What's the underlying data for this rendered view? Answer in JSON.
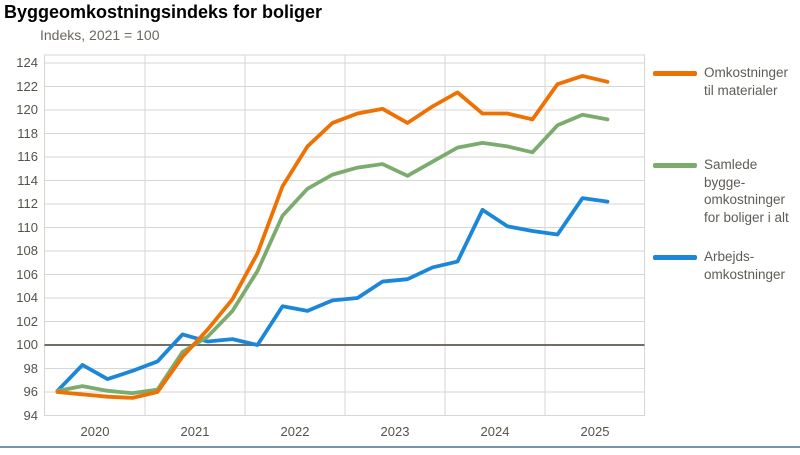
{
  "page": {
    "title": "Byggeomkostningsindeks for boliger",
    "subtitle": "Indeks, 2021 = 100",
    "bottom_border_color": "#7595a9"
  },
  "chart_data": {
    "type": "line",
    "title": "Byggeomkostningsindeks for boliger",
    "subtitle": "Indeks, 2021 = 100",
    "x_unit": "quarter",
    "x": [
      "2020Q1",
      "2020Q2",
      "2020Q3",
      "2020Q4",
      "2021Q1",
      "2021Q2",
      "2021Q3",
      "2021Q4",
      "2022Q1",
      "2022Q2",
      "2022Q3",
      "2022Q4",
      "2023Q1",
      "2023Q2",
      "2023Q3",
      "2023Q4",
      "2024Q1",
      "2024Q2",
      "2024Q3",
      "2024Q4",
      "2025Q1",
      "2025Q2",
      "2025Q3"
    ],
    "x_tick_labels": [
      "2020",
      "2021",
      "2022",
      "2023",
      "2024",
      "2025"
    ],
    "y_ticks": [
      94,
      96,
      98,
      100,
      102,
      104,
      106,
      108,
      110,
      112,
      114,
      116,
      118,
      120,
      122,
      124
    ],
    "ylim": [
      94,
      124
    ],
    "reference_line": {
      "value": 100,
      "color": "#716d66"
    },
    "grid": true,
    "grid_color": "#d8d6d2",
    "legend_position": "right",
    "series": [
      {
        "name": "Omkostninger til materialer",
        "legend_label": "Omkostninger\ntil materialer",
        "color": "#ee7104",
        "values": [
          96.0,
          95.8,
          95.6,
          95.5,
          96.0,
          99.0,
          101.3,
          103.9,
          107.8,
          113.5,
          116.9,
          118.9,
          119.7,
          120.1,
          118.9,
          120.3,
          121.5,
          119.7,
          119.7,
          119.2,
          122.2,
          122.9,
          122.4
        ]
      },
      {
        "name": "Samlede byggeomkostninger for boliger i alt",
        "legend_label": "Samlede\nbygge-\nomkostninger\nfor boliger i alt",
        "color": "#7bac6e",
        "values": [
          96.1,
          96.5,
          96.1,
          95.9,
          96.2,
          99.4,
          100.7,
          102.9,
          106.3,
          111.0,
          113.3,
          114.5,
          115.1,
          115.4,
          114.4,
          115.6,
          116.8,
          117.2,
          116.9,
          116.4,
          118.7,
          119.6,
          119.2
        ]
      },
      {
        "name": "Arbejdsomkostninger",
        "legend_label": "Arbejds-\nomkostninger",
        "color": "#1c87d8",
        "values": [
          96.1,
          98.3,
          97.1,
          97.8,
          98.6,
          100.9,
          100.3,
          100.5,
          100.0,
          103.3,
          102.9,
          103.8,
          104.0,
          105.4,
          105.6,
          106.6,
          107.1,
          111.5,
          110.1,
          109.7,
          109.4,
          112.5,
          112.2
        ]
      }
    ]
  }
}
